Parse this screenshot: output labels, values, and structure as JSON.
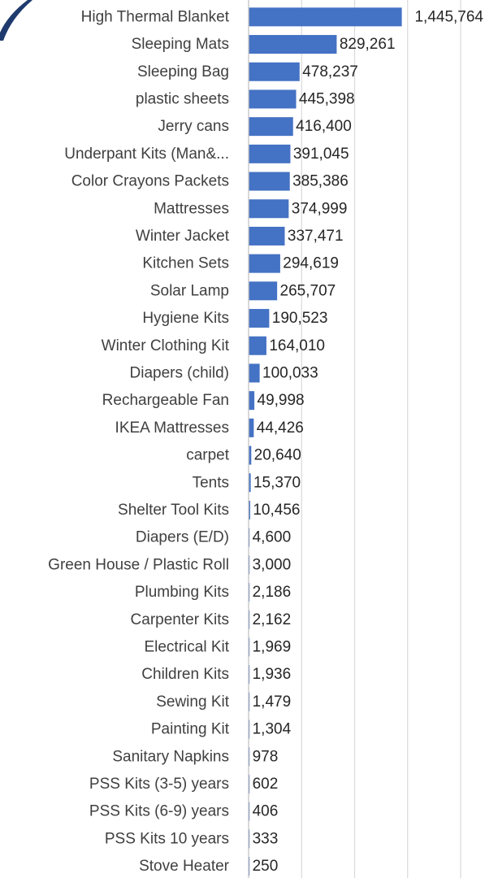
{
  "chart_data": {
    "type": "bar",
    "orientation": "horizontal",
    "title": "",
    "xlabel": "",
    "ylabel": "",
    "grid": true,
    "bar_color": "#4472C4",
    "grid_color": "#D9D9D9",
    "axis_line_color": "#BFBFBF",
    "categories": [
      "High Thermal Blanket",
      "Sleeping Mats",
      "Sleeping Bag",
      "plastic sheets",
      "Jerry cans",
      "Underpant Kits (Man&...",
      "Color Crayons Packets",
      "Mattresses",
      "Winter Jacket",
      "Kitchen Sets",
      "Solar Lamp",
      "Hygiene Kits",
      "Winter Clothing Kit",
      "Diapers (child)",
      "Rechargeable Fan",
      "IKEA Mattresses",
      "carpet",
      "Tents",
      "Shelter Tool Kits",
      "Diapers (E/D)",
      "Green House / Plastic Roll",
      "Plumbing Kits",
      "Carpenter Kits",
      "Electrical  Kit",
      "Children Kits",
      "Sewing Kit",
      "Painting Kit",
      "Sanitary Napkins",
      "PSS Kits (3-5) years",
      "PSS Kits (6-9) years",
      "PSS Kits 10 years",
      "Stove Heater"
    ],
    "values": [
      1445764,
      829261,
      478237,
      445398,
      416400,
      391045,
      385386,
      374999,
      337471,
      294619,
      265707,
      190523,
      164010,
      100033,
      49998,
      44426,
      20640,
      15370,
      10456,
      4600,
      3000,
      2186,
      2162,
      1969,
      1936,
      1479,
      1304,
      978,
      602,
      406,
      333,
      250
    ],
    "value_labels": [
      "1,445,764",
      "829,261",
      "478,237",
      "445,398",
      "416,400",
      "391,045",
      "385,386",
      "374,999",
      "337,471",
      "294,619",
      "265,707",
      "190,523",
      "164,010",
      "100,033",
      "49,998",
      "44,426",
      "20,640",
      "15,370",
      "10,456",
      "4,600",
      "3,000",
      "2,186",
      "2,162",
      "1,969",
      "1,936",
      "1,479",
      "1,304",
      "978",
      "602",
      "406",
      "333",
      "250"
    ],
    "xlim": [
      0,
      1600000
    ],
    "gridline_values": [
      0,
      400000,
      800000,
      1200000,
      1600000
    ]
  },
  "decor": {
    "corner_color": "#1F3A6E"
  }
}
